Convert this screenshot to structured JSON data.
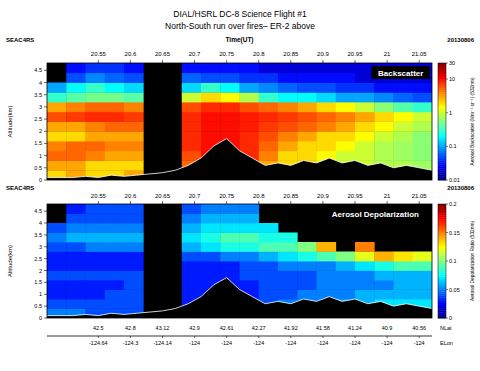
{
  "figure": {
    "title": "DIAL/HSRL DC-8 Science Flight #1",
    "subtitle": "North-South run over fires– ER-2 above"
  },
  "chart_data": [
    {
      "type": "heatmap",
      "label": "Backscatter",
      "source": "SEAC4RS",
      "date": "20130806",
      "xlabel": "Time(UT)",
      "ylabel": "Altitude(km)",
      "xlim": [
        20.47,
        21.07
      ],
      "ylim": [
        0,
        4.8
      ],
      "xticks": [
        20.55,
        20.6,
        20.65,
        20.7,
        20.75,
        20.8,
        20.85,
        20.9,
        20.95,
        21,
        21.05
      ],
      "yticks": [
        0,
        0.5,
        1,
        1.5,
        2,
        2.5,
        3,
        3.5,
        4,
        4.5
      ],
      "x_edges": [
        20.47,
        20.5,
        20.53,
        20.56,
        20.59,
        20.62,
        20.65,
        20.68,
        20.71,
        20.74,
        20.77,
        20.8,
        20.83,
        20.86,
        20.89,
        20.92,
        20.95,
        20.98,
        21.01,
        21.04,
        21.07
      ],
      "y_edges": [
        0,
        0.4,
        0.8,
        1.2,
        1.6,
        2,
        2.4,
        2.8,
        3.2,
        3.6,
        4,
        4.4,
        4.8
      ],
      "cells": [
        [
          2,
          3,
          2,
          2,
          3,
          null,
          null,
          5,
          5,
          5,
          5,
          3,
          2,
          2,
          1,
          1,
          1,
          1,
          0.8,
          0.8
        ],
        [
          3,
          3,
          2,
          2,
          2,
          null,
          null,
          5,
          8,
          8,
          6,
          3,
          2,
          2,
          1,
          1,
          1,
          0.8,
          0.8,
          0.7
        ],
        [
          5,
          5,
          4,
          3,
          3,
          null,
          null,
          6,
          10,
          10,
          8,
          4,
          2,
          2,
          1.5,
          1,
          1,
          0.8,
          0.7,
          0.6
        ],
        [
          4,
          5,
          5,
          4,
          4,
          null,
          null,
          8,
          10,
          10,
          8,
          5,
          3,
          2,
          2,
          1.5,
          1,
          0.8,
          0.7,
          0.6
        ],
        [
          2,
          2,
          3,
          3,
          3,
          null,
          null,
          8,
          10,
          10,
          8,
          6,
          4,
          3,
          2,
          2,
          1.5,
          1,
          0.8,
          0.6
        ],
        [
          3,
          3,
          4,
          5,
          5,
          null,
          null,
          8,
          10,
          10,
          9,
          7,
          6,
          5,
          4,
          3,
          2,
          1.5,
          1,
          0.8
        ],
        [
          6,
          7,
          8,
          8,
          7,
          null,
          null,
          8,
          10,
          10,
          9,
          8,
          7,
          6,
          5,
          4,
          3,
          2,
          1.5,
          1
        ],
        [
          3,
          4,
          5,
          5,
          4,
          null,
          null,
          6,
          8,
          8,
          6,
          5,
          4,
          3,
          2,
          1.5,
          1,
          0.6,
          0.4,
          0.3
        ],
        [
          0.3,
          0.4,
          0.5,
          0.5,
          0.4,
          null,
          null,
          1,
          2,
          1.5,
          0.8,
          0.3,
          0.2,
          0.2,
          0.15,
          0.1,
          0.1,
          0.08,
          0.06,
          0.05
        ],
        [
          0.1,
          0.2,
          0.3,
          0.2,
          0.15,
          null,
          null,
          0.15,
          0.3,
          0.2,
          0.1,
          0.08,
          0.06,
          0.05,
          0.05,
          0.04,
          0.04,
          0.03,
          0.03,
          0.03
        ],
        [
          null,
          0.05,
          0.08,
          0.06,
          0.05,
          null,
          null,
          0.06,
          0.05,
          0.05,
          0.04,
          0.04,
          0.03,
          0.03,
          0.03,
          0.03,
          0.02,
          0.02,
          0.02,
          0.02
        ],
        [
          null,
          0.03,
          0.04,
          0.04,
          0.03,
          null,
          null,
          0.03,
          0.03,
          0.03,
          0.03,
          0.02,
          0.02,
          0.02,
          0.02,
          0.02,
          0.02,
          0.02,
          0.02,
          0.02
        ]
      ],
      "terrain_x": [
        20.47,
        20.49,
        20.51,
        20.53,
        20.55,
        20.57,
        20.59,
        20.61,
        20.63,
        20.65,
        20.67,
        20.69,
        20.71,
        20.73,
        20.75,
        20.77,
        20.79,
        20.81,
        20.83,
        20.85,
        20.87,
        20.89,
        20.91,
        20.93,
        20.95,
        20.97,
        20.99,
        21.01,
        21.03,
        21.05,
        21.07
      ],
      "terrain": [
        0.1,
        0.1,
        0.1,
        0.15,
        0.1,
        0.2,
        0.15,
        0.2,
        0.25,
        0.3,
        0.4,
        0.6,
        0.9,
        1.4,
        1.7,
        1.2,
        0.9,
        0.6,
        0.7,
        0.6,
        0.8,
        0.7,
        0.9,
        0.7,
        0.8,
        0.6,
        0.7,
        0.5,
        0.6,
        0.5,
        0.4
      ],
      "colorbar": {
        "label": "Aerosol Backscatter (Mm⁻¹ sr⁻¹) (532nm)",
        "range": [
          0.01,
          30
        ],
        "ticks": [
          0.01,
          0.1,
          1,
          10,
          30
        ],
        "log": true
      }
    },
    {
      "type": "heatmap",
      "label": "Aerosol Depolarization",
      "source": "SEAC4RS",
      "date": "20130806",
      "ylabel": "Altitude(km)",
      "xlim": [
        20.47,
        21.07
      ],
      "ylim": [
        0,
        4.8
      ],
      "xticks": [
        20.55,
        20.6,
        20.65,
        20.7,
        20.75,
        20.8,
        20.85,
        20.9,
        20.95,
        21,
        21.05
      ],
      "yticks": [
        0,
        0.5,
        1,
        1.5,
        2,
        2.5,
        3,
        3.5,
        4,
        4.5
      ],
      "x_edges": [
        20.47,
        20.5,
        20.53,
        20.56,
        20.59,
        20.62,
        20.65,
        20.68,
        20.71,
        20.74,
        20.77,
        20.8,
        20.83,
        20.86,
        20.89,
        20.92,
        20.95,
        20.98,
        21.01,
        21.04,
        21.07
      ],
      "y_edges": [
        0,
        0.4,
        0.8,
        1.2,
        1.6,
        2,
        2.4,
        2.8,
        3.2,
        3.6,
        4,
        4.4,
        4.8
      ],
      "cells": [
        [
          0.05,
          0.05,
          0.04,
          0.04,
          0.04,
          null,
          null,
          0.03,
          0.03,
          0.03,
          0.03,
          0.04,
          0.05,
          0.05,
          0.06,
          0.06,
          0.07,
          0.07,
          0.08,
          0.08
        ],
        [
          0.04,
          0.04,
          0.04,
          0.04,
          0.04,
          null,
          null,
          0.03,
          0.03,
          0.03,
          0.03,
          0.04,
          0.05,
          0.05,
          0.05,
          0.06,
          0.06,
          0.07,
          0.07,
          0.07
        ],
        [
          0.03,
          0.03,
          0.03,
          0.04,
          0.04,
          null,
          null,
          0.03,
          0.03,
          0.03,
          0.03,
          0.04,
          0.04,
          0.05,
          0.05,
          0.05,
          0.06,
          0.06,
          0.06,
          0.06
        ],
        [
          0.03,
          0.03,
          0.03,
          0.03,
          0.04,
          null,
          null,
          0.03,
          0.03,
          0.03,
          0.03,
          0.04,
          0.04,
          0.04,
          0.05,
          0.05,
          0.05,
          0.05,
          0.06,
          0.06
        ],
        [
          0.04,
          0.04,
          0.04,
          0.04,
          0.04,
          null,
          null,
          0.03,
          0.03,
          0.03,
          0.04,
          0.04,
          0.04,
          0.04,
          0.05,
          0.05,
          0.05,
          0.06,
          0.06,
          0.06
        ],
        [
          0.03,
          0.03,
          0.03,
          0.03,
          0.03,
          null,
          null,
          0.03,
          0.03,
          0.03,
          0.04,
          0.04,
          0.05,
          0.05,
          0.05,
          0.06,
          0.07,
          0.08,
          0.09,
          0.09
        ],
        [
          0.03,
          0.03,
          0.03,
          0.03,
          0.03,
          null,
          null,
          0.04,
          0.04,
          0.05,
          0.05,
          0.06,
          0.07,
          0.08,
          0.09,
          0.1,
          0.12,
          0.14,
          0.13,
          0.12
        ],
        [
          0.04,
          0.04,
          0.05,
          0.05,
          0.05,
          null,
          null,
          0.06,
          0.07,
          0.08,
          0.08,
          0.09,
          0.09,
          0.1,
          0.14,
          null,
          0.15,
          null,
          null,
          null
        ],
        [
          0.05,
          0.06,
          0.06,
          0.06,
          0.06,
          null,
          null,
          0.07,
          0.08,
          0.09,
          0.09,
          0.08,
          0.08,
          null,
          null,
          null,
          null,
          null,
          null,
          null
        ],
        [
          0.04,
          0.05,
          0.05,
          0.05,
          0.05,
          null,
          null,
          0.06,
          0.07,
          0.07,
          0.07,
          0.07,
          null,
          null,
          null,
          null,
          null,
          null,
          null,
          null
        ],
        [
          null,
          0.04,
          0.04,
          0.04,
          0.04,
          null,
          null,
          0.05,
          0.06,
          0.06,
          0.06,
          null,
          null,
          null,
          null,
          null,
          null,
          null,
          null,
          null
        ],
        [
          null,
          0.03,
          0.04,
          0.04,
          0.04,
          null,
          null,
          0.04,
          0.05,
          0.05,
          0.05,
          null,
          null,
          null,
          null,
          null,
          null,
          null,
          null,
          null
        ]
      ],
      "terrain_x": [
        20.47,
        20.49,
        20.51,
        20.53,
        20.55,
        20.57,
        20.59,
        20.61,
        20.63,
        20.65,
        20.67,
        20.69,
        20.71,
        20.73,
        20.75,
        20.77,
        20.79,
        20.81,
        20.83,
        20.85,
        20.87,
        20.89,
        20.91,
        20.93,
        20.95,
        20.97,
        20.99,
        21.01,
        21.03,
        21.05,
        21.07
      ],
      "terrain": [
        0.1,
        0.1,
        0.1,
        0.15,
        0.1,
        0.2,
        0.15,
        0.2,
        0.25,
        0.3,
        0.4,
        0.6,
        0.9,
        1.4,
        1.7,
        1.2,
        0.9,
        0.6,
        0.7,
        0.6,
        0.8,
        0.7,
        0.9,
        0.7,
        0.8,
        0.6,
        0.7,
        0.5,
        0.6,
        0.5,
        0.4
      ],
      "colorbar": {
        "label": "Aerosol Depolarization Ratio (532nm)",
        "range": [
          0,
          0.2
        ],
        "ticks": [
          0,
          0.05,
          0.1,
          0.15,
          0.2
        ]
      },
      "location_ticks": {
        "x": [
          20.55,
          20.6,
          20.65,
          20.7,
          20.75,
          20.8,
          20.85,
          20.9,
          20.95,
          21,
          21.05
        ],
        "lat": [
          42.5,
          42.8,
          43.12,
          42.9,
          42.61,
          42.27,
          41.92,
          41.58,
          41.24,
          40.9,
          40.56
        ],
        "lon": [
          -124.64,
          -124.3,
          -124.14,
          -124,
          -124,
          -124,
          -124,
          -124,
          -124,
          -124,
          -124
        ],
        "lat_label": "NLat",
        "lon_label": "ELon"
      }
    }
  ]
}
